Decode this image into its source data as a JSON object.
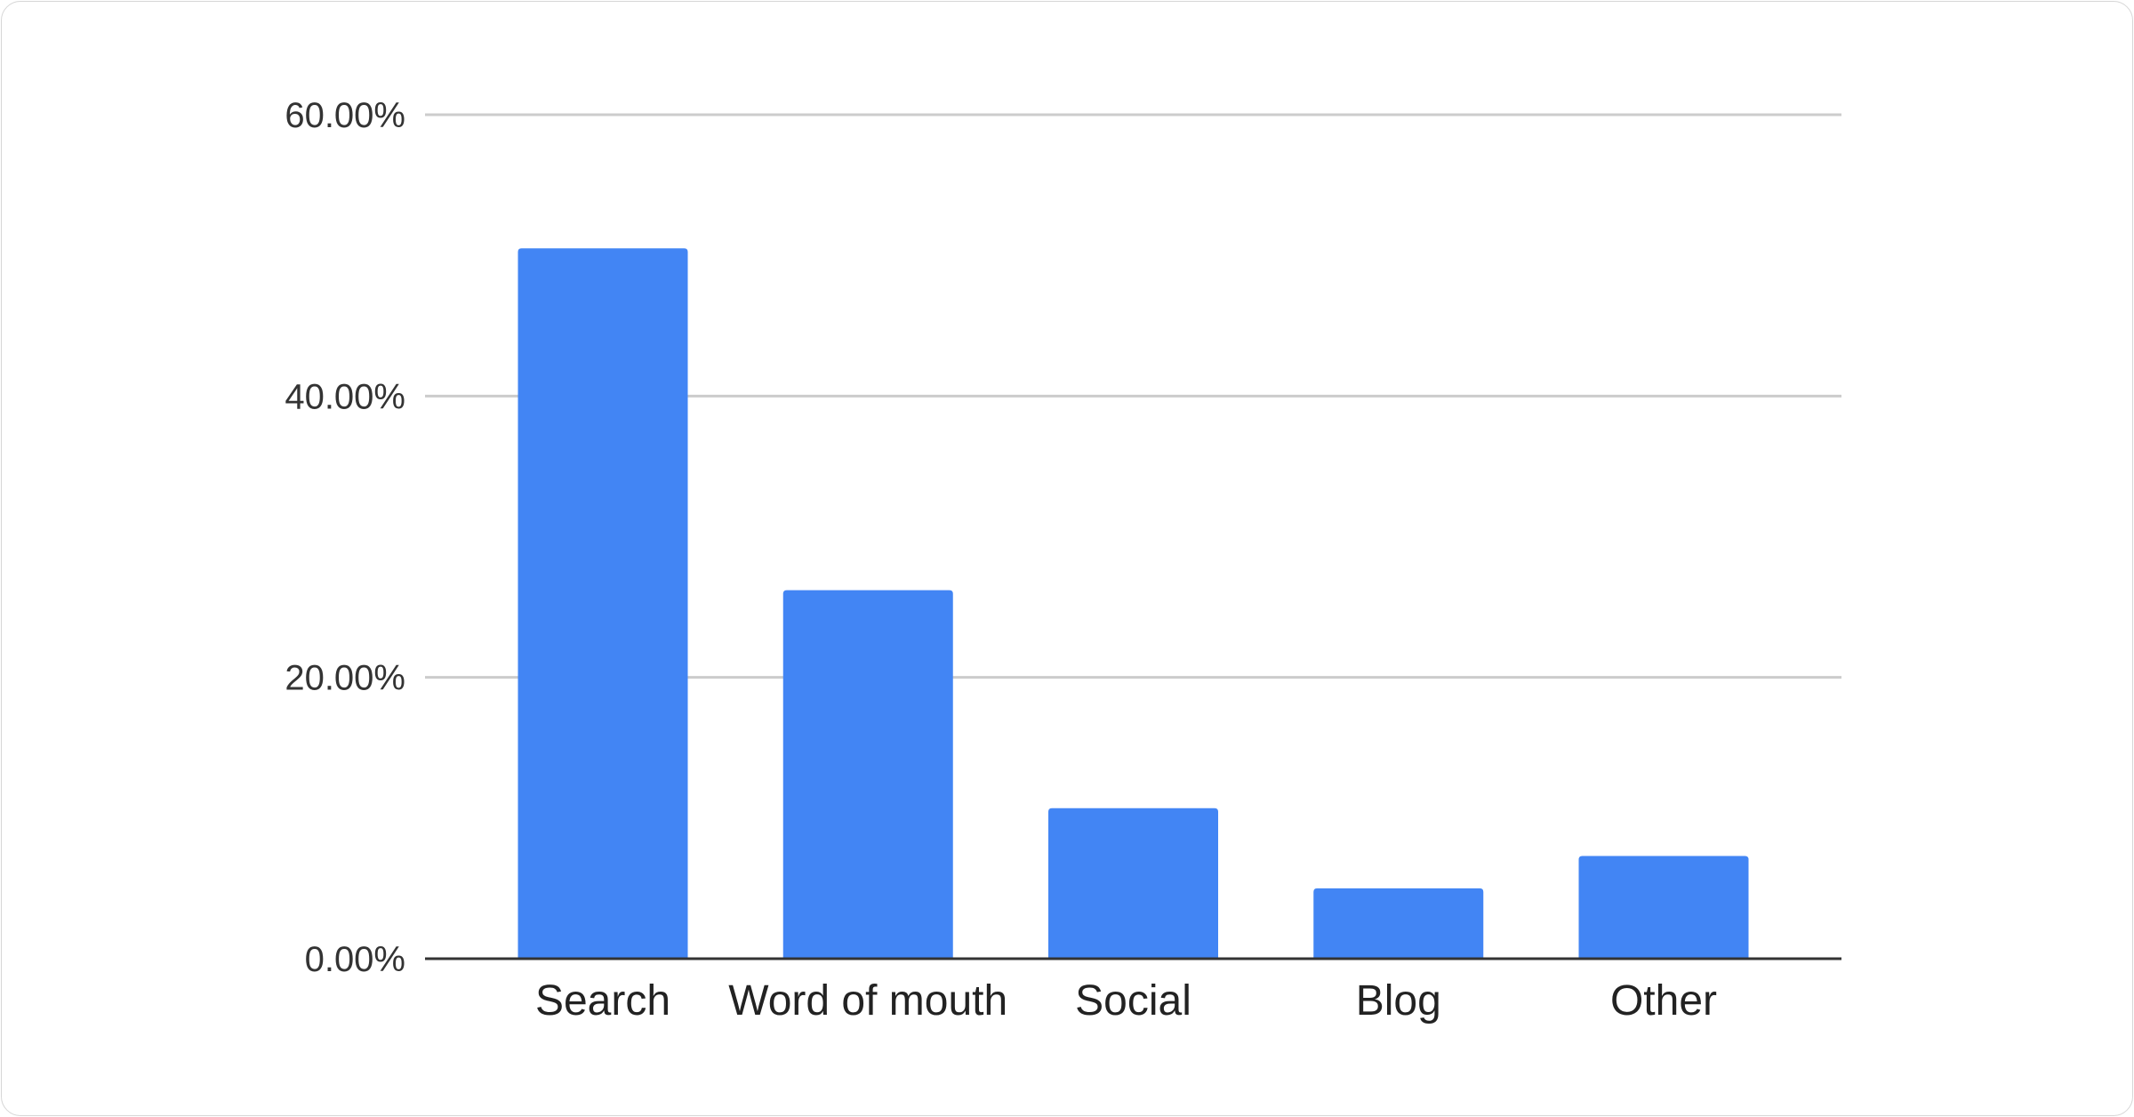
{
  "chart_data": {
    "type": "bar",
    "title": "",
    "xlabel": "",
    "ylabel": "",
    "categories": [
      "Search",
      "Word of mouth",
      "Social",
      "Blog",
      "Other"
    ],
    "values": [
      50.5,
      26.2,
      10.7,
      5.0,
      7.3
    ],
    "ylim": [
      0,
      60
    ],
    "yticks": [
      0,
      20,
      40,
      60
    ],
    "ytick_labels": [
      "0.00%",
      "20.00%",
      "40.00%",
      "60.00%"
    ],
    "grid": true,
    "legend": "none",
    "bar_color": "#4285f4",
    "grid_color": "#cccccc",
    "axis_color": "#333333"
  }
}
